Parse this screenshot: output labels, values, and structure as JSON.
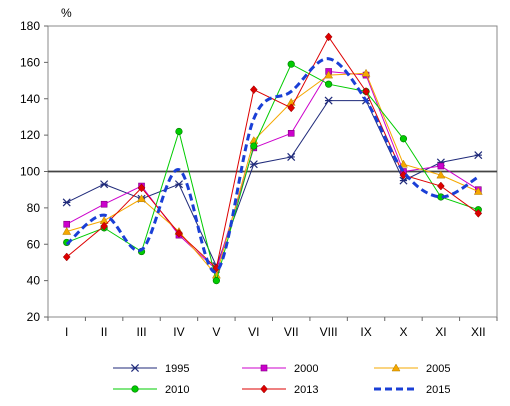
{
  "chart_data": {
    "type": "line",
    "y_unit": "%",
    "ylim": [
      20,
      180
    ],
    "y_ticks": [
      20,
      40,
      60,
      80,
      100,
      120,
      140,
      160,
      180
    ],
    "categories": [
      "I",
      "II",
      "III",
      "IV",
      "V",
      "VI",
      "VII",
      "VIII",
      "IX",
      "X",
      "XI",
      "XII"
    ],
    "reference_line": 100,
    "grid": false,
    "legend_position": "bottom",
    "series": [
      {
        "name": "1995",
        "color": "#1f2a7a",
        "marker": "star",
        "values": [
          83,
          93,
          85,
          93,
          48,
          104,
          108,
          139,
          139,
          95,
          105,
          109
        ]
      },
      {
        "name": "2000",
        "color": "#cc00cc",
        "marker": "square",
        "values": [
          71,
          82,
          92,
          65,
          46,
          113,
          121,
          155,
          153,
          100,
          103,
          90
        ]
      },
      {
        "name": "2005",
        "color": "#f5a800",
        "marker": "triangle",
        "values": [
          67,
          73,
          85,
          67,
          43,
          117,
          138,
          153,
          154,
          104,
          98,
          89
        ]
      },
      {
        "name": "2010",
        "color": "#00cc00",
        "marker": "circle",
        "values": [
          61,
          69,
          56,
          122,
          40,
          114,
          159,
          148,
          144,
          118,
          86,
          79
        ]
      },
      {
        "name": "2013",
        "color": "#dd0000",
        "marker": "diamond",
        "values": [
          53,
          70,
          91,
          66,
          47,
          145,
          135,
          174,
          144,
          98,
          92,
          77
        ]
      },
      {
        "name": "2015",
        "color": "#1a3fd6",
        "marker": "none",
        "dashed": true,
        "values": [
          60,
          76,
          57,
          101,
          45,
          129,
          144,
          162,
          139,
          100,
          86,
          97
        ]
      }
    ]
  }
}
